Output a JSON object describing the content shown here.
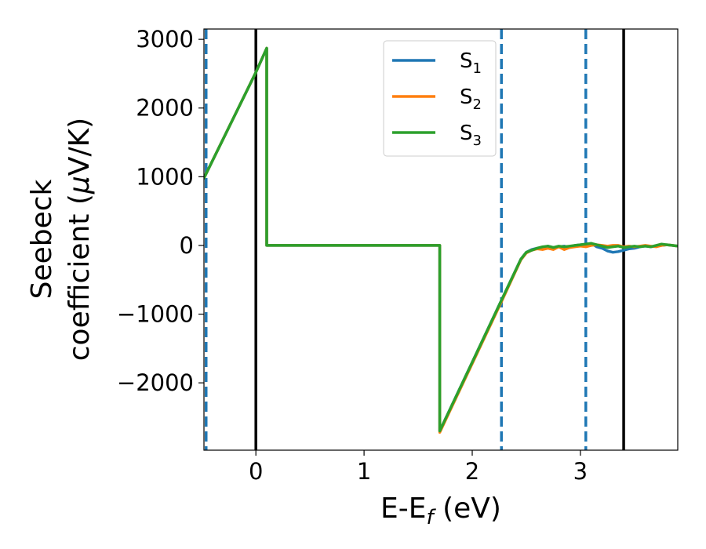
{
  "chart_data": {
    "type": "line",
    "xlabel": "E-E",
    "xlabel_sub": "f",
    "xlabel_unit": " (eV)",
    "ylabel_line1": "Seebeck",
    "ylabel_line2_text": "coefficient  (",
    "ylabel_line2_mu": "μ",
    "ylabel_line2_unit": "V/K)",
    "xlim": [
      -0.48,
      3.9
    ],
    "ylim": [
      -2980,
      3150
    ],
    "xticks": [
      0,
      1,
      2,
      3
    ],
    "xtick_labels": [
      "0",
      "1",
      "2",
      "3"
    ],
    "yticks": [
      3000,
      2000,
      1000,
      0,
      -1000,
      -2000
    ],
    "ytick_labels": [
      "3000",
      "2000",
      "1000",
      "0",
      "−1000",
      "−2000"
    ],
    "grid": false,
    "legend_position": "top-center",
    "series": [
      {
        "name": "S",
        "sub": "1",
        "color": "#1f77b4",
        "x": [
          -0.48,
          0.0,
          0.1,
          0.1,
          1.7,
          1.7,
          2.0,
          2.27,
          2.45,
          2.5,
          2.55,
          2.6,
          2.65,
          2.7,
          2.75,
          2.8,
          2.85,
          2.9,
          2.95,
          3.0,
          3.05,
          3.1,
          3.15,
          3.2,
          3.25,
          3.3,
          3.35,
          3.4,
          3.45,
          3.5,
          3.55,
          3.6,
          3.65,
          3.7,
          3.75,
          3.8,
          3.85,
          3.9
        ],
        "y": [
          980,
          2520,
          2870,
          0,
          0,
          -2700,
          -1700,
          -800,
          -200,
          -100,
          -60,
          -40,
          -30,
          -10,
          -30,
          -20,
          -10,
          -30,
          0,
          10,
          20,
          30,
          -20,
          -40,
          -80,
          -100,
          -90,
          -70,
          -50,
          -40,
          -20,
          -10,
          -20,
          -10,
          0,
          10,
          0,
          -10
        ]
      },
      {
        "name": "S",
        "sub": "2",
        "color": "#ff7f0e",
        "x": [
          -0.48,
          0.0,
          0.1,
          0.1,
          1.7,
          1.7,
          2.0,
          2.27,
          2.45,
          2.5,
          2.55,
          2.6,
          2.65,
          2.7,
          2.75,
          2.8,
          2.85,
          2.9,
          2.95,
          3.0,
          3.05,
          3.1,
          3.15,
          3.2,
          3.25,
          3.3,
          3.35,
          3.4,
          3.45,
          3.5,
          3.55,
          3.6,
          3.65,
          3.7,
          3.75,
          3.8,
          3.85,
          3.9
        ],
        "y": [
          980,
          2520,
          2870,
          0,
          0,
          -2720,
          -1720,
          -820,
          -210,
          -110,
          -70,
          -50,
          -60,
          -40,
          -60,
          -20,
          -60,
          -30,
          -20,
          -10,
          -20,
          0,
          10,
          0,
          -10,
          0,
          0,
          -20,
          -10,
          -20,
          -10,
          0,
          -10,
          -20,
          0,
          10,
          0,
          -10
        ]
      },
      {
        "name": "S",
        "sub": "3",
        "color": "#2ca02c",
        "x": [
          -0.48,
          0.0,
          0.1,
          0.1,
          1.7,
          1.7,
          2.0,
          2.27,
          2.45,
          2.5,
          2.55,
          2.6,
          2.65,
          2.7,
          2.75,
          2.8,
          2.85,
          2.9,
          2.95,
          3.0,
          3.05,
          3.1,
          3.15,
          3.2,
          3.25,
          3.3,
          3.35,
          3.4,
          3.45,
          3.5,
          3.55,
          3.6,
          3.65,
          3.7,
          3.75,
          3.8,
          3.85,
          3.9
        ],
        "y": [
          980,
          2520,
          2870,
          0,
          0,
          -2700,
          -1700,
          -800,
          -200,
          -100,
          -70,
          -40,
          -20,
          -10,
          -30,
          -10,
          -20,
          -10,
          0,
          10,
          20,
          30,
          10,
          -10,
          -30,
          -20,
          -10,
          -30,
          -20,
          -10,
          -20,
          -10,
          -20,
          0,
          20,
          10,
          0,
          -10
        ]
      }
    ],
    "vlines": [
      {
        "x": -0.46,
        "style": "dashed",
        "color": "#1f77b4"
      },
      {
        "x": 0.0,
        "style": "solid",
        "color": "#000000"
      },
      {
        "x": 2.27,
        "style": "dashed",
        "color": "#1f77b4"
      },
      {
        "x": 3.05,
        "style": "dashed",
        "color": "#1f77b4"
      },
      {
        "x": 3.4,
        "style": "solid",
        "color": "#000000"
      }
    ]
  }
}
